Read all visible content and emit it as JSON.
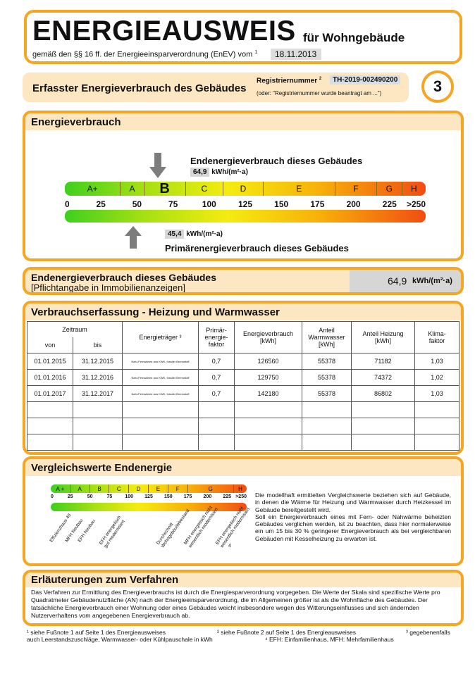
{
  "header": {
    "title": "ENERGIEAUSWEIS",
    "title_suffix": "für Wohngebäude",
    "subtitle": "gemäß den §§ 16 ff. der Energieeinsparverordnung (EnEV) vom",
    "subtitle_sup": "1",
    "date": "18.11.2013"
  },
  "section": {
    "title": "Erfasster Energieverbrauch des Gebäudes",
    "reg_label": "Registriernummer",
    "reg_sup": "2",
    "reg_number": "TH-2019-002490200",
    "reg_note": "(oder: \"Registriernummer wurde beantragt am ...\")",
    "page_number": "3"
  },
  "energieverbrauch": {
    "title": "Energieverbrauch",
    "end_label": "Endenergieverbrauch dieses Gebäudes",
    "end_value": "64,9",
    "end_unit": "kWh/(m²·a)",
    "primary_label": "Primärenergieverbrauch dieses Gebäudes",
    "primary_value": "45,4",
    "primary_unit": "kWh/(m²·a)",
    "classes": [
      "A+",
      "A",
      "B",
      "C",
      "D",
      "E",
      "F",
      "G",
      "H"
    ],
    "active_class": "B",
    "ticks": [
      "0",
      "25",
      "50",
      "75",
      "100",
      "125",
      "150",
      "175",
      "200",
      "225",
      ">250"
    ]
  },
  "endenergie_box": {
    "title": "Endenergieverbrauch dieses Gebäudes",
    "subtitle": "[Pflichtangabe in Immobilienanzeigen]",
    "value": "64,9",
    "unit": "kWh/(m²·a)"
  },
  "verbrauch": {
    "title": "Verbrauchserfassung - Heizung und Warmwasser",
    "headers": {
      "zeitraum": "Zeitraum",
      "von": "von",
      "bis": "bis",
      "traeger": "Energieträger ³",
      "faktor": "Primär-\nenergie-\nfaktor",
      "verbrauch": "Energieverbrauch\n[kWh]",
      "warmwasser": "Anteil\nWarmwasser\n[kWh]",
      "heizung": "Anteil Heizung\n[kWh]",
      "klima": "Klima-\nfaktor"
    },
    "rows": [
      [
        "01.01.2015",
        "31.12.2015",
        "Nah-/Fernwärme aus KWK, fossiler Brennstoff",
        "0,7",
        "126560",
        "55378",
        "71182",
        "1,03"
      ],
      [
        "01.01.2016",
        "31.12.2016",
        "Nah-/Fernwärme aus KWK, fossiler Brennstoff",
        "0,7",
        "129750",
        "55378",
        "74372",
        "1,02"
      ],
      [
        "01.01.2017",
        "31.12.2017",
        "Nah-/Fernwärme aus KWK, fossiler Brennstoff",
        "0,7",
        "142180",
        "55378",
        "86802",
        "1,03"
      ]
    ]
  },
  "vergleich": {
    "title": "Vergleichswerte Endenergie",
    "classes": [
      "A +",
      "A",
      "B",
      "C",
      "D",
      "E",
      "F",
      "G",
      "H"
    ],
    "ticks": [
      "0",
      "25",
      "50",
      "75",
      "100",
      "125",
      "150",
      "175",
      "200",
      "225",
      ">250"
    ],
    "markers": [
      "Effizienzhaus 40",
      "MFH Neubau",
      "EFH Neubau",
      "EFH energetisch gut modernisiert",
      "Durchschnitt Wohngebäudebestand",
      "MFH energetisch nicht wesentlich modernisiert",
      "EFH energetisch nicht wesentlich modernisiert"
    ],
    "footnote_ref": "4",
    "text": "Die modellhaft ermittelten Vergleichswerte beziehen sich auf Gebäude, in denen die Wärme für Heizung und Warmwasser durch Heizkessel im Gebäude bereitgestellt wird.\nSoll ein Energieverbrauch eines mit Fern- oder Nahwärme beheizten Gebäudes verglichen werden, ist zu beachten, dass hier normalerweise ein um 15 bis 30 % geringerer Energieverbrauch als bei vergleichbaren Gebäuden mit Kesselheizung zu erwarten ist."
  },
  "erlaeuterung": {
    "title": "Erläuterungen zum Verfahren",
    "text": "Das Verfahren zur Ermittlung des Energieverbrauchs ist durch die Energiesparverordnung vorgegeben. Die Werte der Skala sind spezifische Werte pro Quadratmeter Gebäudenutzfläche (AN) nach der Energieeinsparverordnung, die im Allgemeinen größer ist als die Wohnfläche des Gebäudes. Der tatsächliche Energieverbrauch einer Wohnung oder eines Gebäudes weicht insbesondere wegen des Witterungseinflusses und sich ändernden Nutzerverhaltens vom angegebenen Energieverbrauch ab."
  },
  "footnotes": {
    "f1": "¹ siehe Fußnote 1 auf Seite 1 des Energieausweises",
    "f2": "² siehe Fußnote 2 auf Seite 1 des Energieausweises",
    "f3": "³ gegebenenfalls",
    "f3b": "auch Leerstandszuschläge, Warmwasser- oder Kühlpauschale in kWh",
    "f4": "⁴ EFH: Einfamilienhaus, MFH: Mehrfamilienhaus"
  },
  "colors": {
    "border": "#f5a623",
    "band": "#fde6c2",
    "value_bg": "#d6d6d6"
  }
}
